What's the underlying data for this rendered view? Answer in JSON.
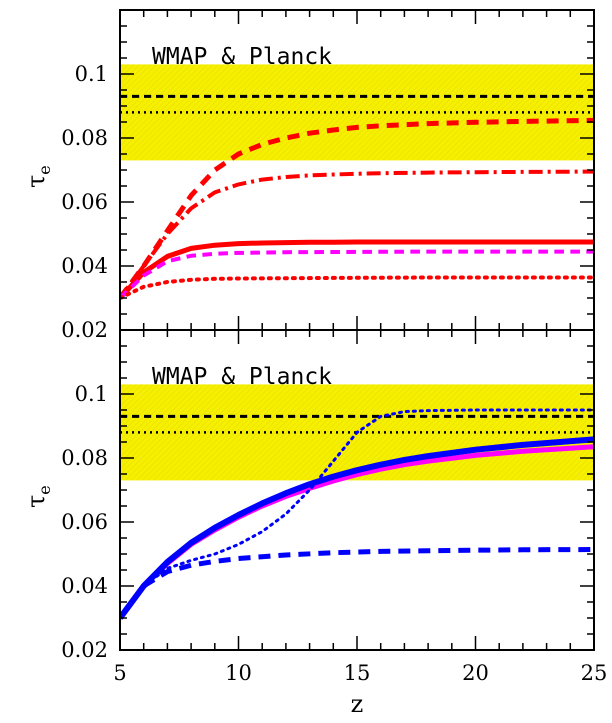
{
  "chart_data": [
    {
      "type": "line",
      "panel": "top",
      "annotation": "WMAP & Planck",
      "xlabel": "z",
      "ylabel": "τ",
      "ylabel_sub": "e",
      "xlim": [
        5,
        25
      ],
      "ylim": [
        0.02,
        0.12
      ],
      "x_ticks": [
        5,
        10,
        15,
        20,
        25
      ],
      "y_ticks": [
        0.02,
        0.04,
        0.06,
        0.08,
        0.1
      ],
      "y_tick_labels": [
        "0.02",
        "0.04",
        "0.06",
        "0.08",
        "0.1"
      ],
      "band": {
        "y0": 0.073,
        "y1": 0.103,
        "color": "#f5f000"
      },
      "hlines": [
        {
          "y": 0.093,
          "style": "dashed",
          "color": "#000000"
        },
        {
          "y": 0.088,
          "style": "dotted",
          "color": "#000000"
        }
      ],
      "series": [
        {
          "style": "dashed",
          "color": "#ff0000",
          "width": 5,
          "x": [
            5,
            6,
            7,
            8,
            9,
            10,
            11,
            12,
            13,
            14,
            15,
            16,
            18,
            20,
            22,
            25
          ],
          "y": [
            0.03,
            0.04,
            0.051,
            0.062,
            0.07,
            0.075,
            0.078,
            0.08,
            0.0815,
            0.0825,
            0.0833,
            0.0838,
            0.0845,
            0.0849,
            0.0852,
            0.0855
          ]
        },
        {
          "style": "dashdot",
          "color": "#ff0000",
          "width": 4,
          "x": [
            5,
            6,
            7,
            8,
            9,
            10,
            11,
            12,
            13,
            14,
            15,
            16,
            18,
            20,
            22,
            25
          ],
          "y": [
            0.03,
            0.04,
            0.05,
            0.058,
            0.063,
            0.0655,
            0.067,
            0.0678,
            0.0683,
            0.0686,
            0.0688,
            0.069,
            0.0692,
            0.0693,
            0.0694,
            0.0695
          ]
        },
        {
          "style": "solid",
          "color": "#ff0000",
          "width": 5,
          "x": [
            5,
            6,
            7,
            8,
            9,
            10,
            11,
            12,
            13,
            14,
            15,
            16,
            18,
            20,
            22,
            25
          ],
          "y": [
            0.03,
            0.038,
            0.043,
            0.0455,
            0.0465,
            0.047,
            0.0472,
            0.0473,
            0.0474,
            0.0474,
            0.0475,
            0.0475,
            0.0475,
            0.0475,
            0.0475,
            0.0475
          ]
        },
        {
          "style": "dashed",
          "color": "#ff00ff",
          "width": 4,
          "x": [
            5,
            6,
            7,
            8,
            9,
            10,
            12,
            15,
            18,
            20,
            25
          ],
          "y": [
            0.03,
            0.037,
            0.0415,
            0.0432,
            0.0438,
            0.0441,
            0.0443,
            0.0444,
            0.0445,
            0.0445,
            0.0445
          ]
        },
        {
          "style": "dotted",
          "color": "#ff0000",
          "width": 4,
          "x": [
            5,
            6,
            7,
            8,
            9,
            10,
            12,
            15,
            18,
            20,
            25
          ],
          "y": [
            0.03,
            0.0335,
            0.035,
            0.0357,
            0.036,
            0.0361,
            0.0362,
            0.0363,
            0.0364,
            0.0364,
            0.0364
          ]
        }
      ]
    },
    {
      "type": "line",
      "panel": "bottom",
      "annotation": "WMAP & Planck",
      "xlabel": "z",
      "ylabel": "τ",
      "ylabel_sub": "e",
      "xlim": [
        5,
        25
      ],
      "ylim": [
        0.02,
        0.12
      ],
      "x_ticks": [
        5,
        10,
        15,
        20,
        25
      ],
      "x_tick_labels": [
        "5",
        "10",
        "15",
        "20",
        "25"
      ],
      "y_ticks": [
        0.02,
        0.04,
        0.06,
        0.08,
        0.1
      ],
      "y_tick_labels": [
        "0.02",
        "0.04",
        "0.06",
        "0.08",
        "0.1"
      ],
      "band": {
        "y0": 0.073,
        "y1": 0.103,
        "color": "#f5f000"
      },
      "hlines": [
        {
          "y": 0.093,
          "style": "dashed",
          "color": "#000000"
        },
        {
          "y": 0.088,
          "style": "dotted",
          "color": "#000000"
        }
      ],
      "series": [
        {
          "style": "solid",
          "color": "#ff00ff",
          "width": 5,
          "x": [
            5,
            6,
            7,
            8,
            9,
            10,
            11,
            12,
            13,
            14,
            15,
            16,
            17,
            18,
            20,
            22,
            25
          ],
          "y": [
            0.03,
            0.04,
            0.047,
            0.053,
            0.0575,
            0.0615,
            0.065,
            0.068,
            0.0705,
            0.0728,
            0.0748,
            0.0765,
            0.0779,
            0.079,
            0.0808,
            0.0821,
            0.0835
          ]
        },
        {
          "style": "solid",
          "color": "#0000ff",
          "width": 6,
          "x": [
            5,
            6,
            7,
            8,
            9,
            10,
            11,
            12,
            13,
            14,
            15,
            16,
            17,
            18,
            20,
            22,
            25
          ],
          "y": [
            0.03,
            0.04,
            0.0475,
            0.0535,
            0.0582,
            0.0622,
            0.0658,
            0.069,
            0.0718,
            0.0742,
            0.0762,
            0.0779,
            0.0794,
            0.0806,
            0.0826,
            0.0841,
            0.0858
          ]
        },
        {
          "style": "dotted",
          "color": "#0000ff",
          "width": 3,
          "x": [
            5,
            6,
            7,
            8,
            9,
            10,
            11,
            12,
            13,
            14,
            15,
            16,
            17,
            18,
            20,
            22,
            25
          ],
          "y": [
            0.03,
            0.04,
            0.0455,
            0.048,
            0.05,
            0.053,
            0.057,
            0.0625,
            0.07,
            0.079,
            0.088,
            0.093,
            0.0945,
            0.0948,
            0.095,
            0.095,
            0.095
          ]
        },
        {
          "style": "dashed",
          "color": "#0000ff",
          "width": 5,
          "x": [
            5,
            6,
            7,
            8,
            9,
            10,
            12,
            14,
            16,
            18,
            20,
            22,
            25
          ],
          "y": [
            0.03,
            0.04,
            0.0445,
            0.0465,
            0.0477,
            0.0486,
            0.0497,
            0.0504,
            0.0508,
            0.051,
            0.0512,
            0.0513,
            0.0514
          ]
        }
      ]
    }
  ]
}
